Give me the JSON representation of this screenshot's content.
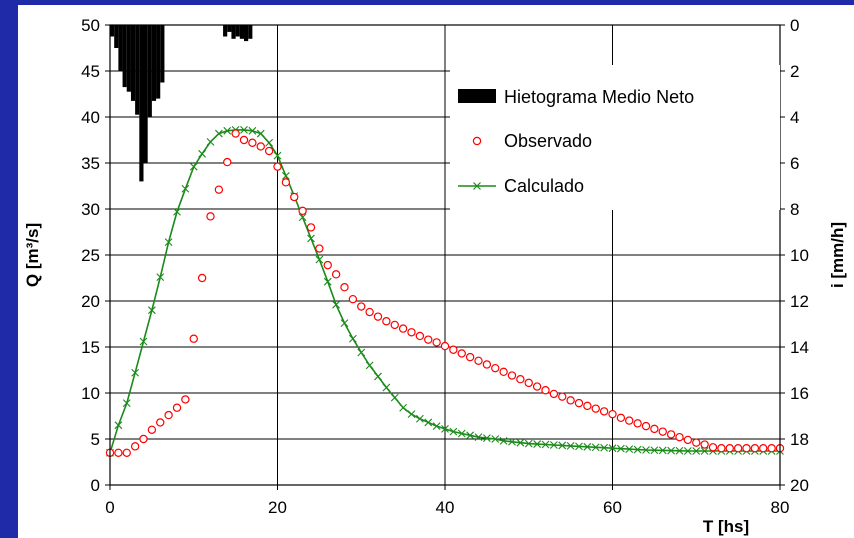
{
  "colors": {
    "background": "#1e2aa8",
    "plot_bg": "#ffffff",
    "hyetograph": "#000000",
    "observed": "#ff0000",
    "calculated": "#1a8a1a"
  },
  "chart_data": {
    "type": "line",
    "xlabel": "T [hs]",
    "ylabel": "Q [m³/s]",
    "y2label": "i [mm/h]",
    "xlim": [
      0,
      80
    ],
    "ylim": [
      0,
      50
    ],
    "y2lim": [
      0,
      20
    ],
    "y2_inverted": true,
    "xticks": [
      "0",
      "20",
      "40",
      "60",
      "80"
    ],
    "yticks": [
      "0",
      "5",
      "10",
      "15",
      "20",
      "25",
      "30",
      "35",
      "40",
      "45",
      "50"
    ],
    "y2ticks": [
      "0",
      "2",
      "4",
      "6",
      "8",
      "10",
      "12",
      "14",
      "16",
      "18",
      "20"
    ],
    "grid": true,
    "legend_position": "top-right",
    "legend": [
      "Hietograma Medio Neto",
      "Observado",
      "Calculado"
    ],
    "hyetograph": {
      "name": "Hietograma Medio Neto",
      "x": [
        0.5,
        1,
        1.5,
        2,
        2.5,
        3,
        3.5,
        4,
        4.5,
        5,
        5.5,
        6,
        6.5,
        14,
        14.5,
        15,
        15.5,
        16,
        16.5,
        17
      ],
      "values": [
        0.5,
        1.0,
        2.0,
        2.7,
        2.9,
        3.3,
        3.9,
        6.8,
        6.0,
        4.0,
        3.3,
        3.2,
        2.5,
        0.5,
        0.3,
        0.6,
        0.5,
        0.6,
        0.7,
        0.6
      ]
    },
    "series": [
      {
        "name": "Observado",
        "x": [
          0,
          1,
          2,
          3,
          4,
          5,
          6,
          7,
          8,
          9,
          10,
          11,
          12,
          13,
          14,
          15,
          16,
          17,
          18,
          19,
          20,
          21,
          22,
          23,
          24,
          25,
          26,
          27,
          28,
          29,
          30,
          31,
          32,
          33,
          34,
          35,
          36,
          37,
          38,
          39,
          40,
          41,
          42,
          43,
          44,
          45,
          46,
          47,
          48,
          49,
          50,
          51,
          52,
          53,
          54,
          55,
          56,
          57,
          58,
          59,
          60,
          61,
          62,
          63,
          64,
          65,
          66,
          67,
          68,
          69,
          70,
          71,
          72,
          73,
          74,
          75,
          76,
          77,
          78,
          79,
          80
        ],
        "values": [
          3.5,
          3.5,
          3.5,
          4.2,
          5,
          6,
          6.8,
          7.6,
          8.4,
          9.3,
          15.9,
          22.5,
          29.2,
          32.1,
          35.1,
          38.2,
          37.5,
          37.2,
          36.8,
          36.3,
          34.6,
          32.9,
          31.3,
          29.8,
          28,
          25.7,
          23.9,
          22.9,
          21.5,
          20.2,
          19.4,
          18.8,
          18.3,
          17.8,
          17.4,
          17,
          16.6,
          16.2,
          15.8,
          15.5,
          15.1,
          14.7,
          14.3,
          13.9,
          13.5,
          13.1,
          12.7,
          12.3,
          11.9,
          11.5,
          11.1,
          10.7,
          10.3,
          9.9,
          9.6,
          9.2,
          8.9,
          8.6,
          8.3,
          8,
          7.7,
          7.3,
          7,
          6.7,
          6.4,
          6.1,
          5.8,
          5.5,
          5.2,
          4.9,
          4.6,
          4.4,
          4.1,
          4,
          4,
          4,
          4,
          4,
          4,
          4,
          4
        ]
      },
      {
        "name": "Calculado",
        "x": [
          0,
          1,
          2,
          3,
          4,
          5,
          6,
          7,
          8,
          9,
          10,
          11,
          12,
          13,
          14,
          15,
          16,
          17,
          18,
          19,
          20,
          21,
          22,
          23,
          24,
          25,
          26,
          27,
          28,
          29,
          30,
          31,
          32,
          33,
          34,
          35,
          36,
          37,
          38,
          39,
          40,
          41,
          42,
          43,
          44,
          45,
          46,
          47,
          48,
          49,
          50,
          51,
          52,
          53,
          54,
          55,
          56,
          57,
          58,
          59,
          60,
          61,
          62,
          63,
          64,
          65,
          66,
          67,
          68,
          69,
          70,
          71,
          72,
          73,
          74,
          75,
          76,
          77,
          78,
          79,
          80
        ],
        "values": [
          3.5,
          6.5,
          8.9,
          12.2,
          15.6,
          19,
          22.6,
          26.4,
          29.7,
          32.2,
          34.6,
          36,
          37.3,
          38.2,
          38.5,
          38.6,
          38.6,
          38.5,
          38.2,
          37.2,
          35.8,
          33.6,
          31.4,
          29.1,
          26.8,
          24.5,
          22.1,
          19.6,
          17.6,
          15.9,
          14.4,
          13,
          11.8,
          10.6,
          9.5,
          8.4,
          7.7,
          7.2,
          6.8,
          6.4,
          6.1,
          5.8,
          5.6,
          5.4,
          5.2,
          5.1,
          5,
          4.8,
          4.7,
          4.6,
          4.5,
          4.45,
          4.4,
          4.35,
          4.3,
          4.25,
          4.2,
          4.15,
          4.1,
          4.05,
          4,
          3.95,
          3.9,
          3.85,
          3.8,
          3.78,
          3.76,
          3.74,
          3.72,
          3.7,
          3.7,
          3.7,
          3.7,
          3.7,
          3.7,
          3.7,
          3.7,
          3.7,
          3.7,
          3.7,
          3.7
        ]
      }
    ]
  }
}
